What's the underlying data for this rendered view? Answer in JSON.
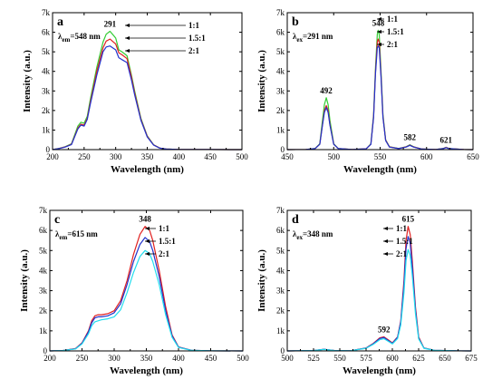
{
  "chart_data": [
    {
      "type": "line",
      "panel": "a",
      "annotation": {
        "lambda": "λ",
        "sub": "em",
        "value": "=548 nm"
      },
      "xlabel": "Wavelength (nm)",
      "ylabel": "Intensity (a.u.)",
      "xlim": [
        200,
        500
      ],
      "ylim": [
        0,
        7000
      ],
      "xticks": [
        "200",
        "250",
        "300",
        "350",
        "400",
        "450",
        "500"
      ],
      "yticks": [
        "0",
        "1k",
        "2k",
        "3k",
        "4k",
        "5k",
        "6k",
        "7k"
      ],
      "peak_labels": [
        {
          "text": "291",
          "x": 291
        }
      ],
      "legend": [
        "1:1",
        "1.5:1",
        "2:1"
      ],
      "series": [
        {
          "name": "1:1",
          "color": "#33cc33",
          "x": [
            200,
            210,
            220,
            230,
            240,
            245,
            250,
            255,
            260,
            270,
            280,
            285,
            291,
            300,
            305,
            310,
            318,
            325,
            330,
            340,
            350,
            360,
            370,
            380,
            400,
            450,
            500
          ],
          "y": [
            0,
            60,
            150,
            300,
            1200,
            1400,
            1350,
            1700,
            2600,
            4200,
            5500,
            5900,
            6050,
            5700,
            5100,
            5000,
            4800,
            3800,
            3000,
            1600,
            700,
            250,
            80,
            30,
            10,
            5,
            0
          ]
        },
        {
          "name": "1.5:1",
          "color": "#e02020",
          "x": [
            200,
            210,
            220,
            230,
            240,
            245,
            250,
            255,
            260,
            270,
            280,
            285,
            291,
            300,
            305,
            310,
            318,
            325,
            330,
            340,
            350,
            360,
            370,
            380,
            400,
            450,
            500
          ],
          "y": [
            0,
            55,
            140,
            280,
            1100,
            1300,
            1250,
            1600,
            2450,
            4000,
            5200,
            5550,
            5650,
            5400,
            4950,
            4850,
            4650,
            3700,
            2900,
            1550,
            680,
            240,
            80,
            30,
            10,
            5,
            0
          ]
        },
        {
          "name": "2:1",
          "color": "#2233cc",
          "x": [
            200,
            210,
            220,
            230,
            240,
            245,
            250,
            255,
            260,
            270,
            280,
            285,
            291,
            300,
            305,
            310,
            318,
            325,
            330,
            340,
            350,
            360,
            370,
            380,
            400,
            450,
            500
          ],
          "y": [
            0,
            50,
            130,
            260,
            1050,
            1250,
            1200,
            1550,
            2350,
            3800,
            5000,
            5250,
            5300,
            5100,
            4700,
            4600,
            4450,
            3550,
            2800,
            1500,
            650,
            230,
            75,
            30,
            10,
            5,
            0
          ]
        }
      ]
    },
    {
      "type": "line",
      "panel": "b",
      "annotation": {
        "lambda": "λ",
        "sub": "ex",
        "value": "=291 nm"
      },
      "xlabel": "Wavelength (nm)",
      "ylabel": "Intensity (a.u.)",
      "xlim": [
        450,
        650
      ],
      "ylim": [
        0,
        7000
      ],
      "xticks": [
        "450",
        "500",
        "550",
        "600",
        "650"
      ],
      "yticks": [
        "0",
        "1k",
        "2k",
        "3k",
        "4k",
        "5k",
        "6k",
        "7k"
      ],
      "peak_labels": [
        {
          "text": "492",
          "x": 492
        },
        {
          "text": "548",
          "x": 548
        },
        {
          "text": "582",
          "x": 582
        },
        {
          "text": "621",
          "x": 621
        }
      ],
      "legend": [
        "1:1",
        "1.5:1",
        "2:1"
      ],
      "series": [
        {
          "name": "1:1",
          "color": "#33cc33",
          "x": [
            450,
            470,
            480,
            485,
            488,
            490,
            492,
            494,
            496,
            500,
            505,
            520,
            535,
            540,
            543,
            545,
            547,
            548,
            549,
            551,
            553,
            556,
            560,
            570,
            578,
            582,
            586,
            595,
            610,
            618,
            621,
            624,
            640,
            650
          ],
          "y": [
            0,
            10,
            60,
            300,
            1500,
            2300,
            2650,
            2300,
            1500,
            300,
            50,
            10,
            40,
            300,
            1800,
            4200,
            5900,
            6100,
            5900,
            4000,
            1800,
            500,
            150,
            60,
            150,
            250,
            150,
            30,
            10,
            60,
            120,
            60,
            5,
            0
          ]
        },
        {
          "name": "1.5:1",
          "color": "#e02020",
          "x": [
            450,
            470,
            480,
            485,
            488,
            490,
            492,
            494,
            496,
            500,
            505,
            520,
            535,
            540,
            543,
            545,
            547,
            548,
            549,
            551,
            553,
            556,
            560,
            570,
            578,
            582,
            586,
            595,
            610,
            618,
            621,
            624,
            640,
            650
          ],
          "y": [
            0,
            10,
            55,
            280,
            1300,
            2000,
            2250,
            2000,
            1300,
            280,
            50,
            10,
            40,
            280,
            1700,
            4000,
            5500,
            5650,
            5500,
            3800,
            1700,
            480,
            140,
            55,
            140,
            230,
            140,
            30,
            10,
            55,
            110,
            55,
            5,
            0
          ]
        },
        {
          "name": "2:1",
          "color": "#2233cc",
          "x": [
            450,
            470,
            480,
            485,
            488,
            490,
            492,
            494,
            496,
            500,
            505,
            520,
            535,
            540,
            543,
            545,
            547,
            548,
            549,
            551,
            553,
            556,
            560,
            570,
            578,
            582,
            586,
            595,
            610,
            618,
            621,
            624,
            640,
            650
          ],
          "y": [
            0,
            10,
            55,
            270,
            1250,
            1900,
            2150,
            1900,
            1250,
            270,
            50,
            10,
            40,
            270,
            1650,
            3900,
            5200,
            5300,
            5200,
            3700,
            1650,
            460,
            130,
            50,
            130,
            220,
            130,
            30,
            10,
            50,
            100,
            50,
            5,
            0
          ]
        }
      ]
    },
    {
      "type": "line",
      "panel": "c",
      "annotation": {
        "lambda": "λ",
        "sub": "em",
        "value": "=615 nm"
      },
      "xlabel": "Wavelength (nm)",
      "ylabel": "Intensity (a.u.)",
      "xlim": [
        200,
        500
      ],
      "ylim": [
        0,
        7000
      ],
      "xticks": [
        "200",
        "250",
        "300",
        "350",
        "400",
        "450",
        "500"
      ],
      "yticks": [
        "0",
        "1k",
        "2k",
        "3k",
        "4k",
        "5k",
        "6k",
        "7k"
      ],
      "peak_labels": [
        {
          "text": "348",
          "x": 348
        }
      ],
      "legend": [
        "1:1",
        "1.5:1",
        "2:1"
      ],
      "series": [
        {
          "name": "1:1",
          "color": "#e02020",
          "x": [
            200,
            220,
            240,
            250,
            260,
            265,
            270,
            275,
            280,
            290,
            300,
            310,
            320,
            330,
            340,
            348,
            355,
            360,
            370,
            380,
            390,
            400,
            420,
            450,
            500
          ],
          "y": [
            0,
            20,
            120,
            400,
            1000,
            1500,
            1750,
            1800,
            1800,
            1850,
            2000,
            2500,
            3500,
            4800,
            5800,
            6200,
            6000,
            5500,
            4000,
            2200,
            800,
            200,
            30,
            5,
            0
          ]
        },
        {
          "name": "1.5:1",
          "color": "#2233cc",
          "x": [
            200,
            220,
            240,
            250,
            260,
            265,
            270,
            275,
            280,
            290,
            300,
            310,
            320,
            330,
            340,
            348,
            355,
            360,
            370,
            380,
            390,
            400,
            420,
            450,
            500
          ],
          "y": [
            0,
            20,
            110,
            380,
            950,
            1400,
            1650,
            1700,
            1700,
            1750,
            1900,
            2350,
            3300,
            4450,
            5300,
            5650,
            5450,
            5000,
            3700,
            2000,
            750,
            190,
            30,
            5,
            0
          ]
        },
        {
          "name": "2:1",
          "color": "#22ddee",
          "x": [
            200,
            220,
            240,
            250,
            260,
            265,
            270,
            275,
            280,
            290,
            300,
            310,
            320,
            330,
            340,
            348,
            355,
            360,
            370,
            380,
            390,
            400,
            420,
            450,
            500
          ],
          "y": [
            0,
            20,
            100,
            350,
            850,
            1250,
            1450,
            1500,
            1550,
            1600,
            1700,
            2050,
            2900,
            3900,
            4700,
            5000,
            4850,
            4450,
            3300,
            1800,
            680,
            170,
            25,
            5,
            0
          ]
        }
      ]
    },
    {
      "type": "line",
      "panel": "d",
      "annotation": {
        "lambda": "λ",
        "sub": "ex",
        "value": "=348 nm"
      },
      "xlabel": "Wavelength (nm)",
      "ylabel": "Intensity (a.u.)",
      "xlim": [
        500,
        675
      ],
      "ylim": [
        0,
        7000
      ],
      "xticks": [
        "500",
        "525",
        "550",
        "575",
        "600",
        "625",
        "650",
        "675"
      ],
      "yticks": [
        "0",
        "1k",
        "2k",
        "3k",
        "4k",
        "5k",
        "6k",
        "7k"
      ],
      "peak_labels": [
        {
          "text": "592",
          "x": 592
        },
        {
          "text": "615",
          "x": 615
        }
      ],
      "legend": [
        "1:1",
        "1.5:1",
        "2:1"
      ],
      "series": [
        {
          "name": "1:1",
          "color": "#e02020",
          "x": [
            500,
            525,
            535,
            545,
            560,
            575,
            582,
            588,
            592,
            596,
            600,
            605,
            608,
            611,
            613,
            615,
            617,
            619,
            622,
            625,
            630,
            640,
            660,
            675
          ],
          "y": [
            0,
            20,
            80,
            20,
            10,
            150,
            380,
            650,
            700,
            550,
            400,
            700,
            1500,
            3500,
            5500,
            6200,
            5800,
            4500,
            2200,
            700,
            150,
            30,
            5,
            0
          ]
        },
        {
          "name": "1.5:1",
          "color": "#2233cc",
          "x": [
            500,
            525,
            535,
            545,
            560,
            575,
            582,
            588,
            592,
            596,
            600,
            605,
            608,
            611,
            613,
            615,
            617,
            619,
            622,
            625,
            630,
            640,
            660,
            675
          ],
          "y": [
            0,
            20,
            80,
            20,
            10,
            140,
            360,
            620,
            670,
            520,
            380,
            680,
            1450,
            3300,
            5100,
            5700,
            5350,
            4200,
            2050,
            650,
            140,
            30,
            5,
            0
          ]
        },
        {
          "name": "2:1",
          "color": "#22ddee",
          "x": [
            500,
            525,
            535,
            545,
            560,
            575,
            582,
            588,
            592,
            596,
            600,
            605,
            608,
            611,
            613,
            615,
            617,
            619,
            622,
            625,
            630,
            640,
            660,
            675
          ],
          "y": [
            0,
            20,
            70,
            20,
            10,
            130,
            330,
            560,
            610,
            480,
            350,
            620,
            1300,
            2900,
            4500,
            5050,
            4750,
            3750,
            1850,
            600,
            130,
            25,
            5,
            0
          ]
        }
      ]
    }
  ]
}
